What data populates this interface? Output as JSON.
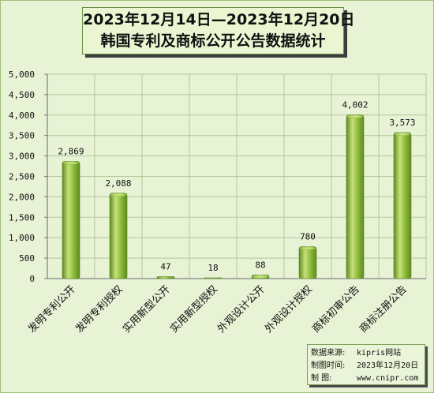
{
  "title": {
    "line1": "2023年12月14日—2023年12月20日",
    "line2": "韩国专利及商标公开公告数据统计"
  },
  "chart_data": {
    "type": "bar",
    "categories": [
      "发明专利公开",
      "发明专利授权",
      "实用新型公开",
      "实用新型授权",
      "外观设计公开",
      "外观设计授权",
      "商标初审公告",
      "商标注册公告"
    ],
    "values": [
      2869,
      2088,
      47,
      18,
      88,
      780,
      4002,
      3573
    ],
    "data_labels": [
      "2,869",
      "2,088",
      "47",
      "18",
      "88",
      "780",
      "4,002",
      "3,573"
    ],
    "ylim": [
      0,
      5000
    ],
    "y_ticks": [
      0,
      500,
      1000,
      1500,
      2000,
      2500,
      3000,
      3500,
      4000,
      4500,
      5000
    ],
    "y_tick_labels": [
      "0",
      "500",
      "1,000",
      "1,500",
      "2,000",
      "2,500",
      "3,000",
      "3,500",
      "4,000",
      "4,500",
      "5,000"
    ],
    "grid": true,
    "xlabel": "",
    "ylabel": "",
    "colors": {
      "bar_light": "#c6e27a",
      "bar_mid": "#8dbb3a",
      "bar_dark": "#5e8a20",
      "plot_bg": "#e8f3d6",
      "grid": "#b3c79a"
    }
  },
  "source": {
    "row1_label": "数据来源:",
    "row1_value": "kipris网站",
    "row2_label": "制图时间:",
    "row2_value": "2023年12月20日",
    "row3_label": "制      图:",
    "row3_value": "www.cnipr.com"
  }
}
